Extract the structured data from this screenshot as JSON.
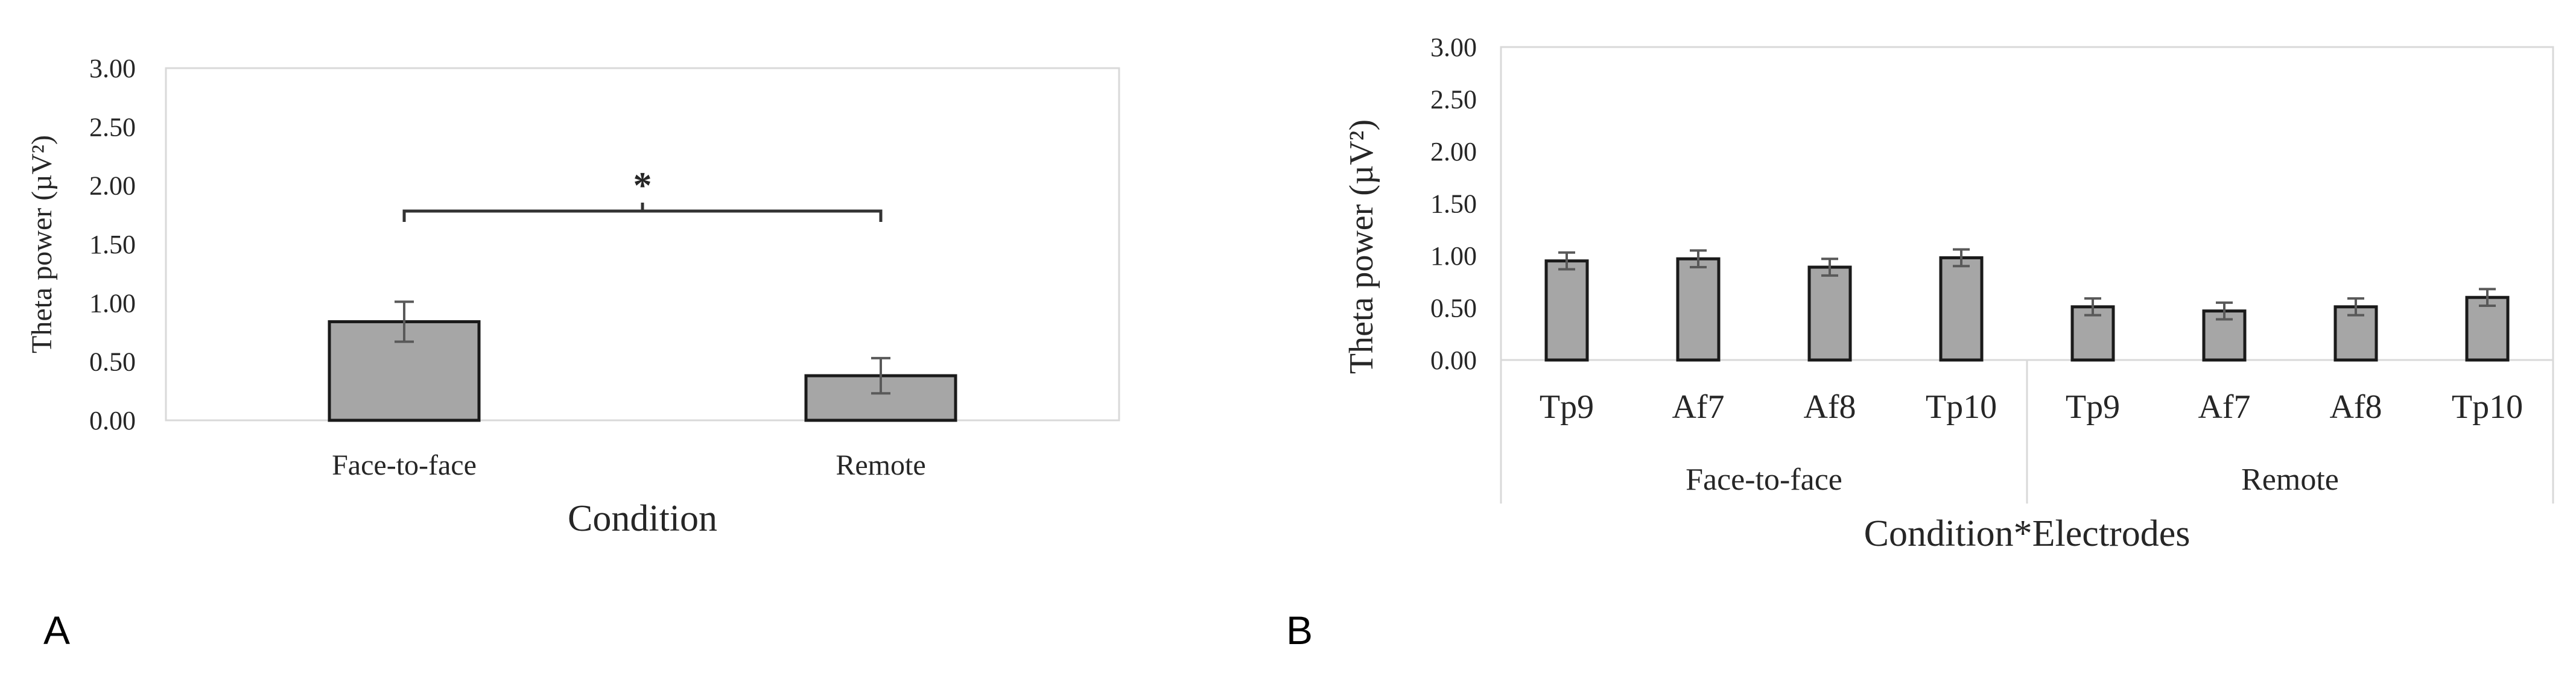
{
  "colors": {
    "bar_fill": "#a6a6a6",
    "bar_stroke": "#1a1a1a",
    "frame": "#d9d9d9",
    "error_bar": "#595959",
    "text": "#262626"
  },
  "panels": [
    {
      "id": "A",
      "letter": "A"
    },
    {
      "id": "B",
      "letter": "B"
    }
  ],
  "chart_data": [
    {
      "type": "bar",
      "panel": "A",
      "title": "",
      "xlabel": "Condition",
      "ylabel": "Theta power  (µV²)",
      "ylim": [
        0,
        3
      ],
      "yticks": [
        "0.00",
        "0.50",
        "1.00",
        "1.50",
        "2.00",
        "2.50",
        "3.00"
      ],
      "grid": false,
      "categories": [
        "Face-to-face",
        "Remote"
      ],
      "values": [
        0.84,
        0.38
      ],
      "errors": [
        0.17,
        0.15
      ],
      "annotations": [
        {
          "type": "significance-bracket",
          "between": [
            "Face-to-face",
            "Remote"
          ],
          "label": "*"
        }
      ]
    },
    {
      "type": "bar",
      "panel": "B",
      "title": "",
      "xlabel": "Condition*Electrodes",
      "ylabel": "Theta power  (µV²)",
      "ylim": [
        0,
        3
      ],
      "yticks": [
        "0.00",
        "0.50",
        "1.00",
        "1.50",
        "2.00",
        "2.50",
        "3.00"
      ],
      "grid": false,
      "groups": [
        {
          "name": "Face-to-face",
          "categories": [
            "Tp9",
            "Af7",
            "Af8",
            "Tp10"
          ],
          "values": [
            0.95,
            0.97,
            0.89,
            0.98
          ],
          "errors": [
            0.08,
            0.08,
            0.08,
            0.08
          ]
        },
        {
          "name": "Remote",
          "categories": [
            "Tp9",
            "Af7",
            "Af8",
            "Tp10"
          ],
          "values": [
            0.51,
            0.47,
            0.51,
            0.6
          ],
          "errors": [
            0.08,
            0.08,
            0.08,
            0.08
          ]
        }
      ]
    }
  ]
}
